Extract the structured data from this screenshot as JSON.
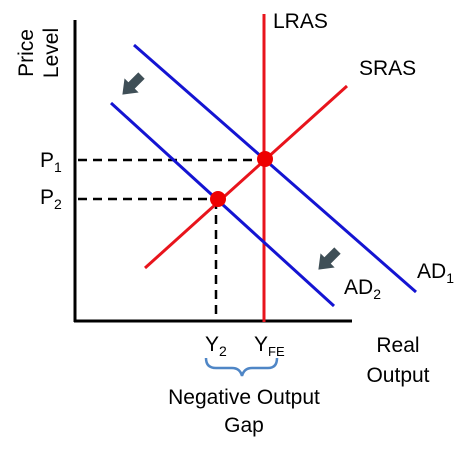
{
  "axes": {
    "y_label_line1": "Price",
    "y_label_line2": "Level",
    "x_label_line1": "Real",
    "x_label_line2": "Output"
  },
  "curves": {
    "lras": "LRAS",
    "sras": "SRAS",
    "ad1_base": "AD",
    "ad1_sub": "1",
    "ad2_base": "AD",
    "ad2_sub": "2"
  },
  "ticks": {
    "p1_base": "P",
    "p1_sub": "1",
    "p2_base": "P",
    "p2_sub": "2",
    "y2_base": "Y",
    "y2_sub": "2",
    "yfe_base": "Y",
    "yfe_sub": "FE"
  },
  "gap": {
    "line1": "Negative Output",
    "line2": "Gap"
  },
  "colors": {
    "axis": "#000000",
    "lras": "#e8141c",
    "sras": "#e8141c",
    "ad": "#1414d2",
    "equilibrium": "#ee0000",
    "arrow": "#3f4f57",
    "bracket": "#4f86c6"
  }
}
